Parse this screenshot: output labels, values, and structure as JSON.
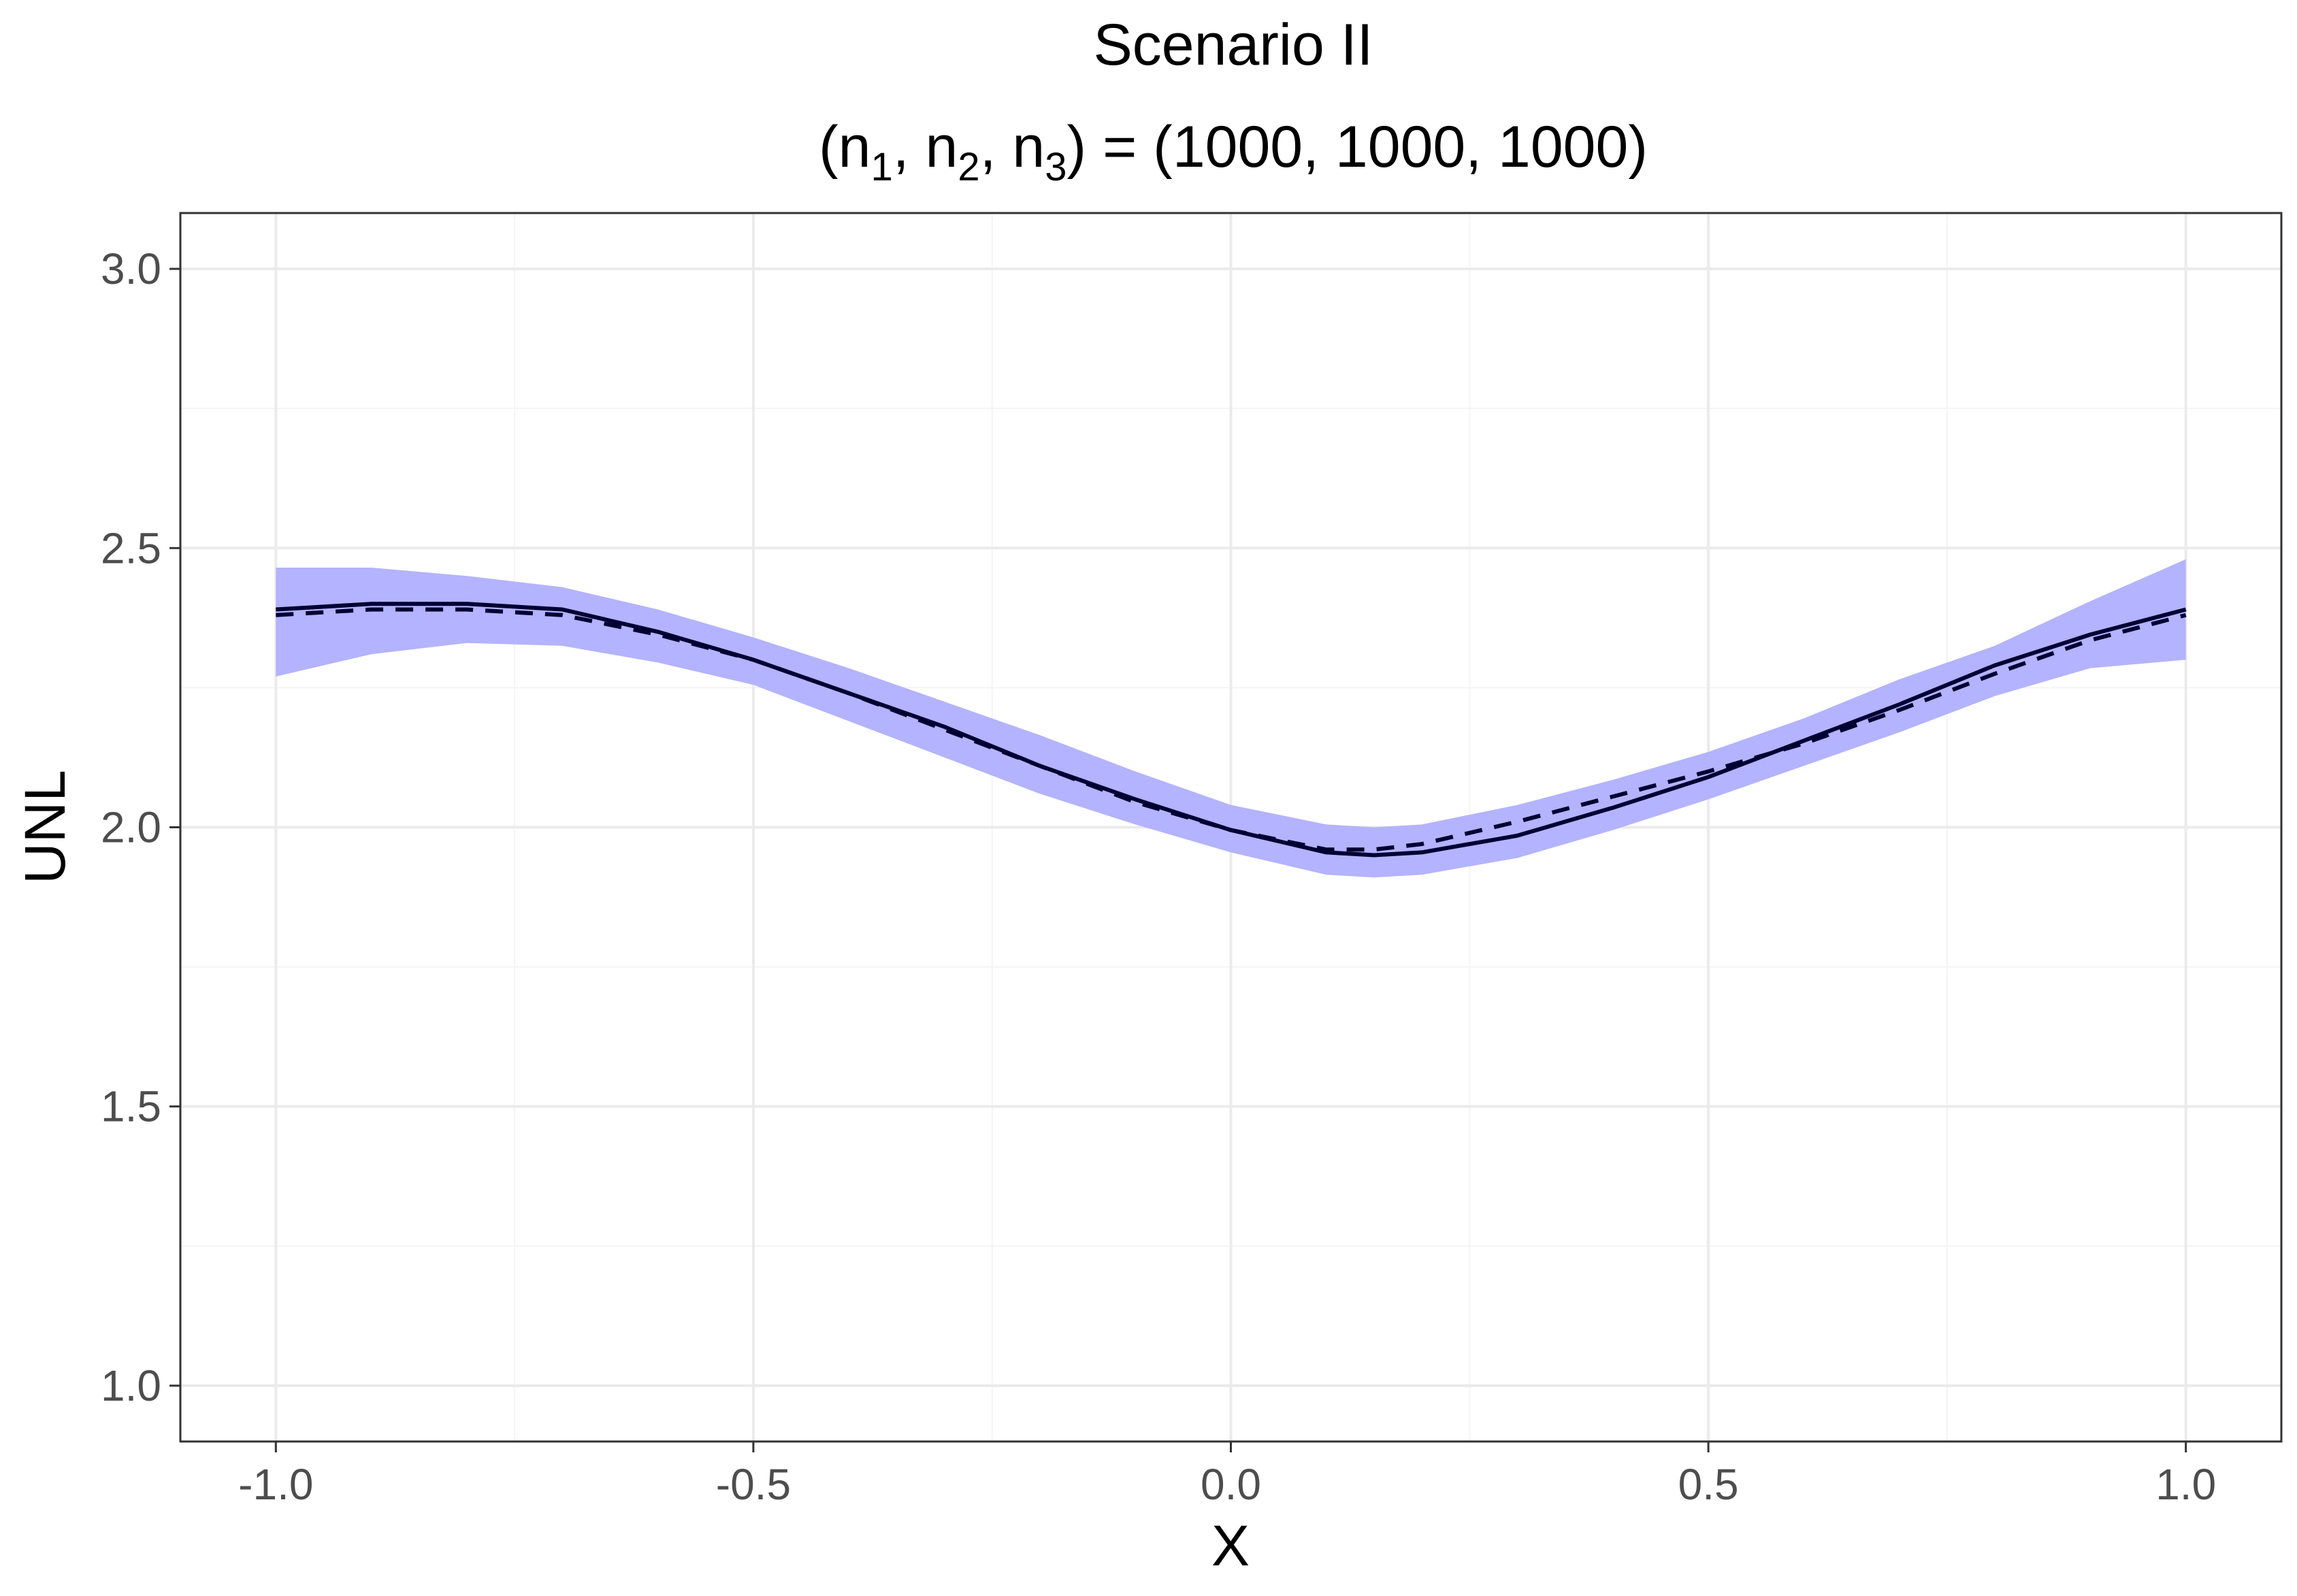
{
  "chart_data": {
    "type": "line",
    "title": "Scenario II",
    "subtitle": {
      "prefix": "(n",
      "s1": "1",
      "sep1": ", n",
      "s2": "2",
      "sep2": ", n",
      "s3": "3",
      "suffix": ") = (1000, 1000, 1000)"
    },
    "xlabel": "X",
    "ylabel": "UNL",
    "xlim": [
      -1.1,
      1.1
    ],
    "ylim": [
      0.9,
      3.1
    ],
    "x_ticks": [
      -1.0,
      -0.5,
      0.0,
      0.5,
      1.0
    ],
    "x_tick_labels": [
      "-1.0",
      "-0.5",
      "0.0",
      "0.5",
      "1.0"
    ],
    "y_ticks": [
      1.0,
      1.5,
      2.0,
      2.5,
      3.0
    ],
    "y_tick_labels": [
      "1.0",
      "1.5",
      "2.0",
      "2.5",
      "3.0"
    ],
    "grid": true,
    "legend": "none",
    "colors": {
      "band": "#b3b3ff",
      "line": "#000033",
      "grid_major": "#ebebeb",
      "grid_minor": "#f4f4f4",
      "border": "#333333"
    },
    "x": [
      -1.0,
      -0.9,
      -0.8,
      -0.7,
      -0.6,
      -0.5,
      -0.4,
      -0.3,
      -0.2,
      -0.1,
      0.0,
      0.1,
      0.15,
      0.2,
      0.3,
      0.4,
      0.5,
      0.6,
      0.7,
      0.8,
      0.9,
      1.0
    ],
    "series": [
      {
        "values": [
          2.39,
          2.4,
          2.4,
          2.39,
          2.35,
          2.3,
          2.24,
          2.18,
          2.11,
          2.05,
          1.995,
          1.955,
          1.95,
          1.955,
          1.985,
          2.035,
          2.09,
          2.155,
          2.22,
          2.29,
          2.345,
          2.39
        ],
        "style": "solid"
      },
      {
        "values": [
          2.38,
          2.39,
          2.39,
          2.38,
          2.345,
          2.3,
          2.24,
          2.175,
          2.11,
          2.045,
          1.995,
          1.96,
          1.96,
          1.97,
          2.01,
          2.055,
          2.1,
          2.15,
          2.21,
          2.275,
          2.335,
          2.38
        ],
        "style": "dashed"
      }
    ],
    "band": {
      "lower": [
        2.27,
        2.31,
        2.33,
        2.325,
        2.295,
        2.255,
        2.19,
        2.125,
        2.06,
        2.005,
        1.955,
        1.915,
        1.91,
        1.915,
        1.945,
        1.995,
        2.05,
        2.11,
        2.17,
        2.235,
        2.285,
        2.3
      ],
      "upper": [
        2.465,
        2.465,
        2.45,
        2.43,
        2.39,
        2.34,
        2.285,
        2.225,
        2.165,
        2.1,
        2.04,
        2.005,
        2.0,
        2.005,
        2.04,
        2.085,
        2.135,
        2.195,
        2.265,
        2.325,
        2.405,
        2.48
      ]
    }
  }
}
